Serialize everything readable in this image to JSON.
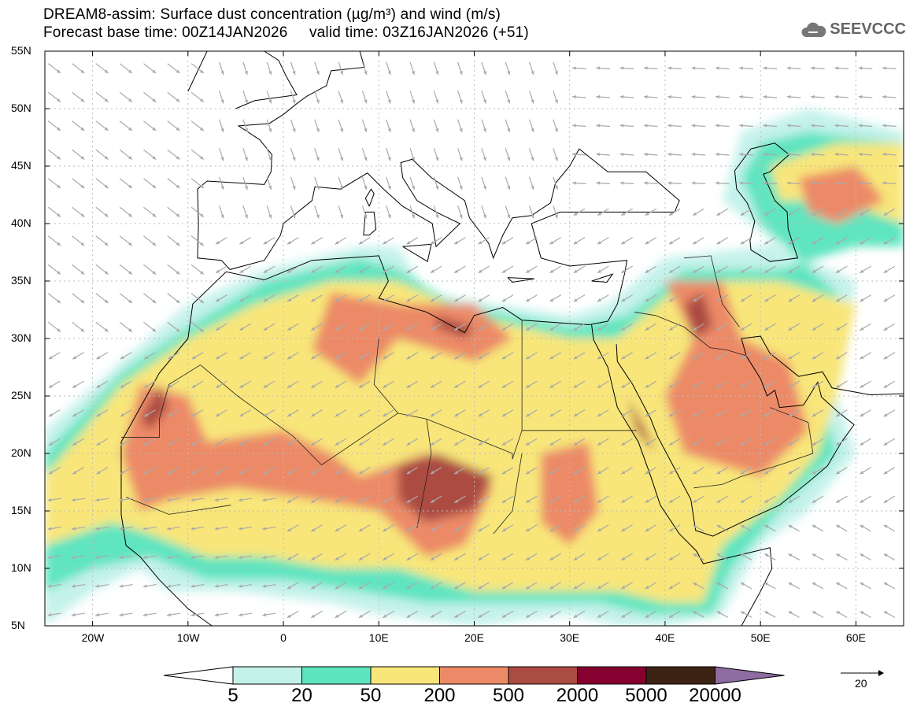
{
  "header": {
    "title_line1": "DREAM8-assim: Surface dust concentration (µg/m³) and wind (m/s)",
    "title_line2": "Forecast base time: 00Z14JAN2026     valid time: 03Z16JAN2026 (+51)",
    "logo_text": "SEEVCCC"
  },
  "map": {
    "lon_range": [
      -25,
      65
    ],
    "lat_range": [
      5,
      55
    ],
    "lat_labels": [
      "55N",
      "50N",
      "45N",
      "40N",
      "35N",
      "30N",
      "25N",
      "20N",
      "15N",
      "10N",
      "5N"
    ],
    "lon_labels": [
      "20W",
      "10W",
      "0",
      "10E",
      "20E",
      "30E",
      "40E",
      "50E",
      "60E"
    ]
  },
  "colorbar": {
    "labels": [
      "5",
      "20",
      "50",
      "200",
      "500",
      "2000",
      "5000",
      "20000"
    ],
    "colors": [
      "#c4f2ea",
      "#5ee5bf",
      "#f8e67a",
      "#ec8a68",
      "#ab4c42",
      "#860030",
      "#3d2314"
    ],
    "over_color": "#8e6ba0",
    "under_color": "#ffffff"
  },
  "wind_reference": {
    "label": "20",
    "value": 20
  }
}
